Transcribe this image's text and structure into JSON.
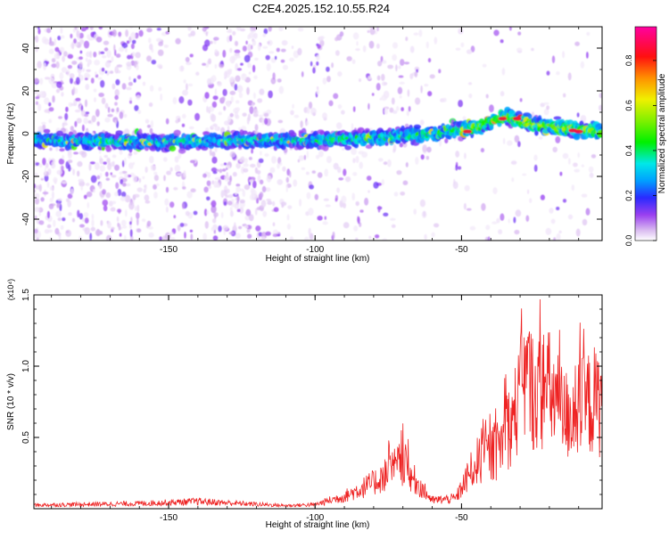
{
  "page_title": "C2E4.2025.152.10.55.R24",
  "chart_data": [
    {
      "type": "heatmap",
      "title": "C2E4.2025.152.10.55.R24",
      "xlabel": "Height of straight line (km)",
      "ylabel": "Frequency (Hz)",
      "xlim": [
        -196,
        -2
      ],
      "ylim": [
        -50,
        50
      ],
      "x_ticks": [
        -150,
        -100,
        -50
      ],
      "y_ticks": [
        -40,
        -20,
        0,
        20,
        40
      ],
      "grid": false,
      "colorbar": {
        "label": "Normalized spectral amplitude",
        "range": [
          0,
          0.95
        ],
        "ticks": [
          0.0,
          0.2,
          0.4,
          0.6,
          0.8
        ],
        "colormap": [
          "#ffffff",
          "#c8a0f0",
          "#7a00f0",
          "#2a2aff",
          "#00a0ff",
          "#00f0e0",
          "#00f000",
          "#c8f000",
          "#ffd000",
          "#ff6000",
          "#ff0000",
          "#ff00a0"
        ]
      },
      "ridge": {
        "points": [
          [
            -196,
            -3
          ],
          [
            -150,
            -4
          ],
          [
            -120,
            -3
          ],
          [
            -100,
            -3
          ],
          [
            -80,
            -2
          ],
          [
            -60,
            0
          ],
          [
            -45,
            3
          ],
          [
            -35,
            8
          ],
          [
            -25,
            4
          ],
          [
            -10,
            2
          ],
          [
            -2,
            1
          ]
        ]
      },
      "colors": {
        "axis": "#000000"
      }
    },
    {
      "type": "line",
      "xlabel": "Height of straight line (km)",
      "ylabel": "SNR (10 * v/v)",
      "y_multiplier": "(x10⁴)",
      "xlim": [
        -196,
        -2
      ],
      "ylim": [
        0,
        1.5
      ],
      "x_ticks": [
        -150,
        -100,
        -50
      ],
      "y_ticks": [
        0.5,
        1.0,
        1.5
      ],
      "grid": false,
      "series": [
        {
          "color": "#ee2222",
          "envelope": [
            [
              -196,
              0.035
            ],
            [
              -160,
              0.05
            ],
            [
              -140,
              0.07
            ],
            [
              -110,
              0.03
            ],
            [
              -100,
              0.04
            ],
            [
              -90,
              0.12
            ],
            [
              -80,
              0.25
            ],
            [
              -70,
              0.45
            ],
            [
              -66,
              0.28
            ],
            [
              -60,
              0.08
            ],
            [
              -52,
              0.1
            ],
            [
              -45,
              0.45
            ],
            [
              -38,
              0.55
            ],
            [
              -32,
              0.9
            ],
            [
              -28,
              1.3
            ],
            [
              -25,
              1.1
            ],
            [
              -20,
              1.15
            ],
            [
              -15,
              0.9
            ],
            [
              -10,
              0.95
            ],
            [
              -5,
              1.05
            ],
            [
              -2,
              1.0
            ]
          ]
        }
      ],
      "colors": {
        "axis": "#000000"
      }
    }
  ]
}
